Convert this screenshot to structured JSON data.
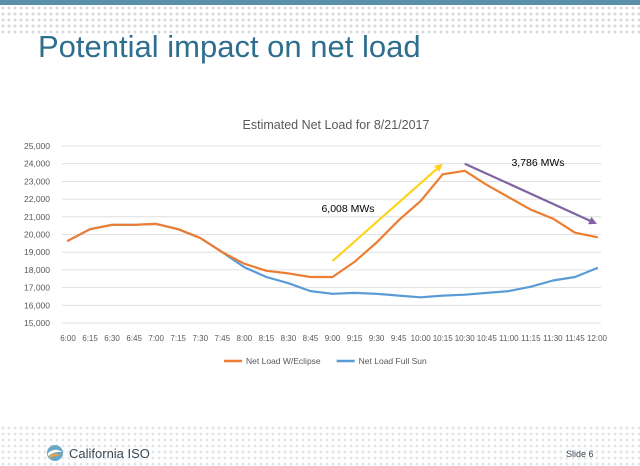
{
  "slide": {
    "title": "Potential impact on net load",
    "logo_text": "California ISO",
    "slide_number": "Slide 6"
  },
  "chart_data": {
    "type": "line",
    "title": "Estimated Net Load for 8/21/2017",
    "xlabel": "",
    "ylabel": "",
    "ylim": [
      15000,
      25000
    ],
    "ytick_step": 1000,
    "ytick_labels": [
      "15,000",
      "16,000",
      "17,000",
      "18,000",
      "19,000",
      "20,000",
      "21,000",
      "22,000",
      "23,000",
      "24,000",
      "25,000"
    ],
    "categories": [
      "6:00",
      "6:15",
      "6:30",
      "6:45",
      "7:00",
      "7:15",
      "7:30",
      "7:45",
      "8:00",
      "8:15",
      "8:30",
      "8:45",
      "9:00",
      "9:15",
      "9:30",
      "9:45",
      "10:00",
      "10:15",
      "10:30",
      "10:45",
      "11:00",
      "11:15",
      "11:30",
      "11:45",
      "12:00"
    ],
    "series": [
      {
        "name": "Net Load W/Eclipse",
        "color": "#ed7d31",
        "values": [
          19650,
          20300,
          20550,
          20550,
          20600,
          20300,
          19800,
          19000,
          18350,
          17950,
          17800,
          17600,
          17600,
          18450,
          19550,
          20800,
          21900,
          23400,
          23600,
          22800,
          22100,
          21400,
          20900,
          20100,
          19850
        ]
      },
      {
        "name": "Net Load Full Sun",
        "color": "#5b9bd5",
        "values": [
          19650,
          20300,
          20550,
          20550,
          20600,
          20300,
          19800,
          19000,
          18150,
          17600,
          17250,
          16800,
          16650,
          16700,
          16650,
          16550,
          16450,
          16550,
          16600,
          16700,
          16800,
          17050,
          17400,
          17600,
          18100
        ]
      }
    ],
    "annotations": [
      {
        "text": "6,008 MWs",
        "color": "#000000"
      },
      {
        "text": "3,786 MWs",
        "color": "#000000"
      }
    ],
    "arrows": [
      {
        "from": [
          "9:00",
          18500
        ],
        "to": [
          "10:15",
          24000
        ],
        "color": "#ffd21f"
      },
      {
        "from": [
          "10:30",
          24000
        ],
        "to": [
          "12:00",
          20600
        ],
        "color": "#8064a2"
      }
    ],
    "grid": true,
    "legend_position": "bottom"
  }
}
